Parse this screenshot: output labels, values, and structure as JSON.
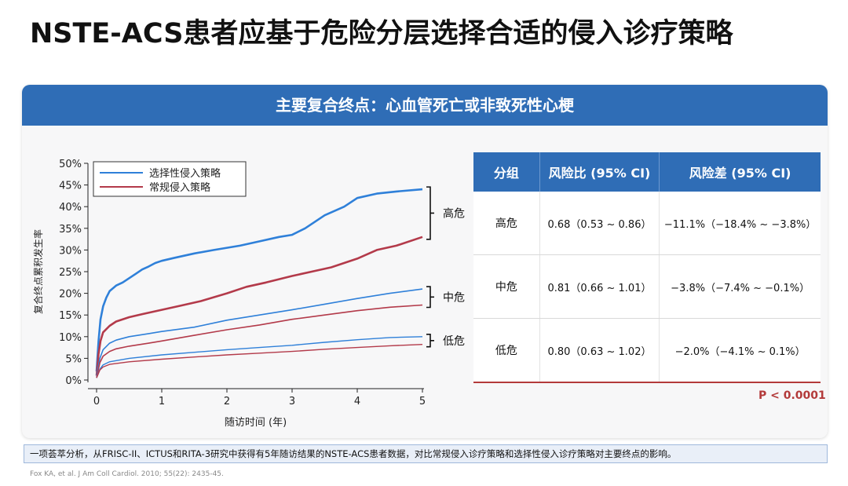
{
  "title": "NSTE-ACS患者应基于危险分层选择合适的侵入诊疗策略",
  "panel": {
    "header": "主要复合终点：心血管死亡或非致死性心梗"
  },
  "chart_data": {
    "type": "line",
    "xlabel": "随访时间 (年)",
    "ylabel": "复合终点累积发生率",
    "xlim": [
      0,
      5
    ],
    "ylim": [
      0,
      50
    ],
    "x_ticks": [
      "0",
      "1",
      "2",
      "3",
      "4",
      "5"
    ],
    "y_ticks": [
      "0%",
      "5%",
      "10%",
      "15%",
      "20%",
      "25%",
      "30%",
      "35%",
      "40%",
      "45%",
      "50%"
    ],
    "legend": {
      "position": "top-left",
      "entries": [
        {
          "name": "选择性侵入策略",
          "color": "#2f80d9"
        },
        {
          "name": "常规侵入策略",
          "color": "#b33a4a"
        }
      ]
    },
    "brackets": [
      "高危",
      "中危",
      "低危"
    ],
    "series": [
      {
        "name": "选择性侵入策略",
        "group": "高危",
        "color": "#2f80d9",
        "width": 2.6,
        "points": [
          [
            0,
            2
          ],
          [
            0.03,
            9
          ],
          [
            0.06,
            14
          ],
          [
            0.1,
            17
          ],
          [
            0.15,
            19
          ],
          [
            0.2,
            20.5
          ],
          [
            0.3,
            21.8
          ],
          [
            0.4,
            22.5
          ],
          [
            0.5,
            23.5
          ],
          [
            0.6,
            24.5
          ],
          [
            0.7,
            25.5
          ],
          [
            0.8,
            26.2
          ],
          [
            0.9,
            27
          ],
          [
            1.0,
            27.5
          ],
          [
            1.2,
            28.2
          ],
          [
            1.5,
            29.2
          ],
          [
            1.8,
            30
          ],
          [
            2.0,
            30.5
          ],
          [
            2.2,
            31
          ],
          [
            2.5,
            32
          ],
          [
            2.8,
            33
          ],
          [
            3.0,
            33.5
          ],
          [
            3.2,
            35
          ],
          [
            3.5,
            38
          ],
          [
            3.8,
            40
          ],
          [
            4.0,
            42
          ],
          [
            4.3,
            43
          ],
          [
            4.6,
            43.5
          ],
          [
            5.0,
            44
          ]
        ]
      },
      {
        "name": "常规侵入策略",
        "group": "高危",
        "color": "#b33a4a",
        "width": 2.6,
        "points": [
          [
            0,
            1
          ],
          [
            0.03,
            6
          ],
          [
            0.06,
            9
          ],
          [
            0.1,
            11
          ],
          [
            0.2,
            12.5
          ],
          [
            0.3,
            13.5
          ],
          [
            0.5,
            14.5
          ],
          [
            0.7,
            15.2
          ],
          [
            1.0,
            16.2
          ],
          [
            1.3,
            17.2
          ],
          [
            1.6,
            18.2
          ],
          [
            2.0,
            20
          ],
          [
            2.3,
            21.5
          ],
          [
            2.6,
            22.5
          ],
          [
            3.0,
            24
          ],
          [
            3.3,
            25
          ],
          [
            3.6,
            26
          ],
          [
            4.0,
            28
          ],
          [
            4.3,
            30
          ],
          [
            4.6,
            31
          ],
          [
            5.0,
            33
          ]
        ]
      },
      {
        "name": "选择性侵入策略",
        "group": "中危",
        "color": "#2f80d9",
        "width": 1.6,
        "points": [
          [
            0,
            1
          ],
          [
            0.05,
            5
          ],
          [
            0.1,
            7
          ],
          [
            0.2,
            8.5
          ],
          [
            0.3,
            9.2
          ],
          [
            0.5,
            10
          ],
          [
            0.8,
            10.7
          ],
          [
            1.0,
            11.2
          ],
          [
            1.5,
            12.2
          ],
          [
            2.0,
            13.8
          ],
          [
            2.5,
            15
          ],
          [
            3.0,
            16.2
          ],
          [
            3.5,
            17.5
          ],
          [
            4.0,
            18.8
          ],
          [
            4.5,
            20
          ],
          [
            5.0,
            21
          ]
        ]
      },
      {
        "name": "常规侵入策略",
        "group": "中危",
        "color": "#b33a4a",
        "width": 1.6,
        "points": [
          [
            0,
            0.5
          ],
          [
            0.05,
            4
          ],
          [
            0.1,
            5.5
          ],
          [
            0.2,
            6.6
          ],
          [
            0.3,
            7.2
          ],
          [
            0.5,
            7.8
          ],
          [
            0.8,
            8.5
          ],
          [
            1.0,
            9
          ],
          [
            1.5,
            10.3
          ],
          [
            2.0,
            11.6
          ],
          [
            2.5,
            12.7
          ],
          [
            3.0,
            14
          ],
          [
            3.5,
            15
          ],
          [
            4.0,
            16
          ],
          [
            4.5,
            16.8
          ],
          [
            5.0,
            17.3
          ]
        ]
      },
      {
        "name": "选择性侵入策略",
        "group": "低危",
        "color": "#2f80d9",
        "width": 1.4,
        "points": [
          [
            0,
            0.5
          ],
          [
            0.05,
            2.5
          ],
          [
            0.1,
            3.5
          ],
          [
            0.2,
            4.2
          ],
          [
            0.5,
            5
          ],
          [
            1.0,
            5.8
          ],
          [
            1.5,
            6.4
          ],
          [
            2.0,
            7
          ],
          [
            2.5,
            7.5
          ],
          [
            3.0,
            8
          ],
          [
            3.5,
            8.7
          ],
          [
            4.0,
            9.3
          ],
          [
            4.5,
            9.8
          ],
          [
            5.0,
            10
          ]
        ]
      },
      {
        "name": "常规侵入策略",
        "group": "低危",
        "color": "#b33a4a",
        "width": 1.4,
        "points": [
          [
            0,
            0.5
          ],
          [
            0.05,
            2.3
          ],
          [
            0.1,
            3
          ],
          [
            0.2,
            3.6
          ],
          [
            0.5,
            4.2
          ],
          [
            1.0,
            4.8
          ],
          [
            1.5,
            5.3
          ],
          [
            2.0,
            5.8
          ],
          [
            2.5,
            6.2
          ],
          [
            3.0,
            6.6
          ],
          [
            3.5,
            7.1
          ],
          [
            4.0,
            7.5
          ],
          [
            4.5,
            7.9
          ],
          [
            5.0,
            8.2
          ]
        ]
      }
    ]
  },
  "table": {
    "headers": [
      "分组",
      "风险比 (95% CI)",
      "风险差 (95% CI)"
    ],
    "rows": [
      {
        "group": "高危",
        "hr": "0.68（0.53 ~ 0.86）",
        "rd": "−11.1%（−18.4% ~ −3.8%）"
      },
      {
        "group": "中危",
        "hr": "0.81（0.66 ~ 1.01）",
        "rd": "−3.8%（−7.4% ~ −0.1%）"
      },
      {
        "group": "低危",
        "hr": "0.80（0.63 ~ 1.02）",
        "rd": "−2.0%（−4.1% ~ 0.1%）"
      }
    ]
  },
  "p_value": "P < 0.0001",
  "footnote": "一项荟萃分析，从FRISC-II、ICTUS和RITA-3研究中获得有5年随访结果的NSTE-ACS患者数据，对比常规侵入诊疗策略和选择性侵入诊疗策略对主要终点的影响。",
  "reference": "Fox KA, et al. J Am Coll Cardiol. 2010; 55(22): 2435-45."
}
